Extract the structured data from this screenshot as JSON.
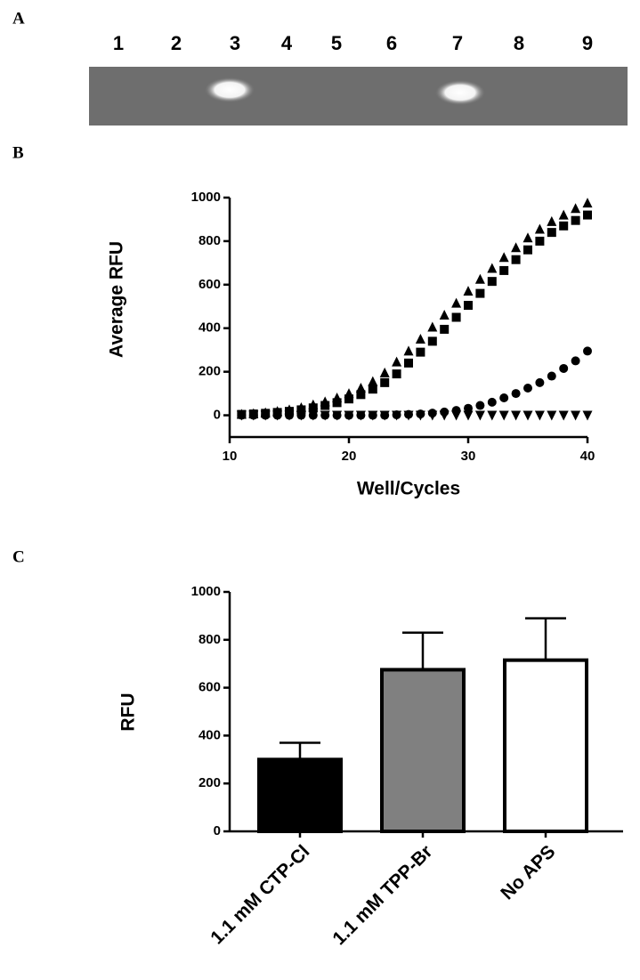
{
  "panel_labels": [
    "A",
    "B",
    "C"
  ],
  "gel": {
    "lanes": [
      "1",
      "2",
      "3",
      "4",
      "5",
      "6",
      "7",
      "8",
      "9"
    ]
  },
  "chart_data": [
    {
      "type": "scatter",
      "xlabel": "Well/Cycles",
      "ylabel": "Average RFU",
      "xlim": [
        10,
        40
      ],
      "xticks": [
        10,
        20,
        30,
        40
      ],
      "ylim": [
        -100,
        1000
      ],
      "yticks": [
        0,
        200,
        400,
        600,
        800,
        1000
      ],
      "x": [
        11,
        12,
        13,
        14,
        15,
        16,
        17,
        18,
        19,
        20,
        21,
        22,
        23,
        24,
        25,
        26,
        27,
        28,
        29,
        30,
        31,
        32,
        33,
        34,
        35,
        36,
        37,
        38,
        39,
        40
      ],
      "series": [
        {
          "marker": "triangle-up",
          "color": "#000000",
          "values": [
            5,
            8,
            12,
            18,
            25,
            35,
            48,
            62,
            80,
            100,
            125,
            155,
            195,
            245,
            295,
            350,
            405,
            460,
            515,
            570,
            625,
            675,
            725,
            770,
            815,
            855,
            890,
            920,
            950,
            975
          ]
        },
        {
          "marker": "square",
          "color": "#000000",
          "values": [
            4,
            6,
            9,
            13,
            18,
            25,
            34,
            45,
            58,
            75,
            95,
            120,
            150,
            190,
            240,
            290,
            340,
            395,
            450,
            505,
            560,
            615,
            665,
            715,
            760,
            800,
            840,
            870,
            895,
            920
          ]
        },
        {
          "marker": "circle",
          "color": "#000000",
          "values": [
            0,
            0,
            0,
            0,
            0,
            0,
            0,
            0,
            0,
            0,
            0,
            0,
            0,
            2,
            4,
            6,
            10,
            15,
            22,
            32,
            45,
            60,
            80,
            100,
            125,
            150,
            180,
            215,
            250,
            295
          ]
        },
        {
          "marker": "triangle-down",
          "color": "#000000",
          "values": [
            0,
            0,
            0,
            0,
            0,
            0,
            0,
            0,
            0,
            0,
            0,
            0,
            0,
            0,
            0,
            0,
            0,
            0,
            0,
            0,
            0,
            0,
            0,
            0,
            0,
            0,
            0,
            0,
            0,
            0
          ]
        }
      ]
    },
    {
      "type": "bar",
      "ylabel": "RFU",
      "categories": [
        "1.1 mM CTP-Cl",
        "1.1 mM TPP-Br",
        "No APS"
      ],
      "values": [
        300,
        675,
        715
      ],
      "errors": [
        70,
        155,
        175
      ],
      "colors": [
        "#000000",
        "#808080",
        "#ffffff"
      ],
      "ylim": [
        0,
        1000
      ],
      "yticks": [
        0,
        200,
        400,
        600,
        800,
        1000
      ]
    }
  ]
}
